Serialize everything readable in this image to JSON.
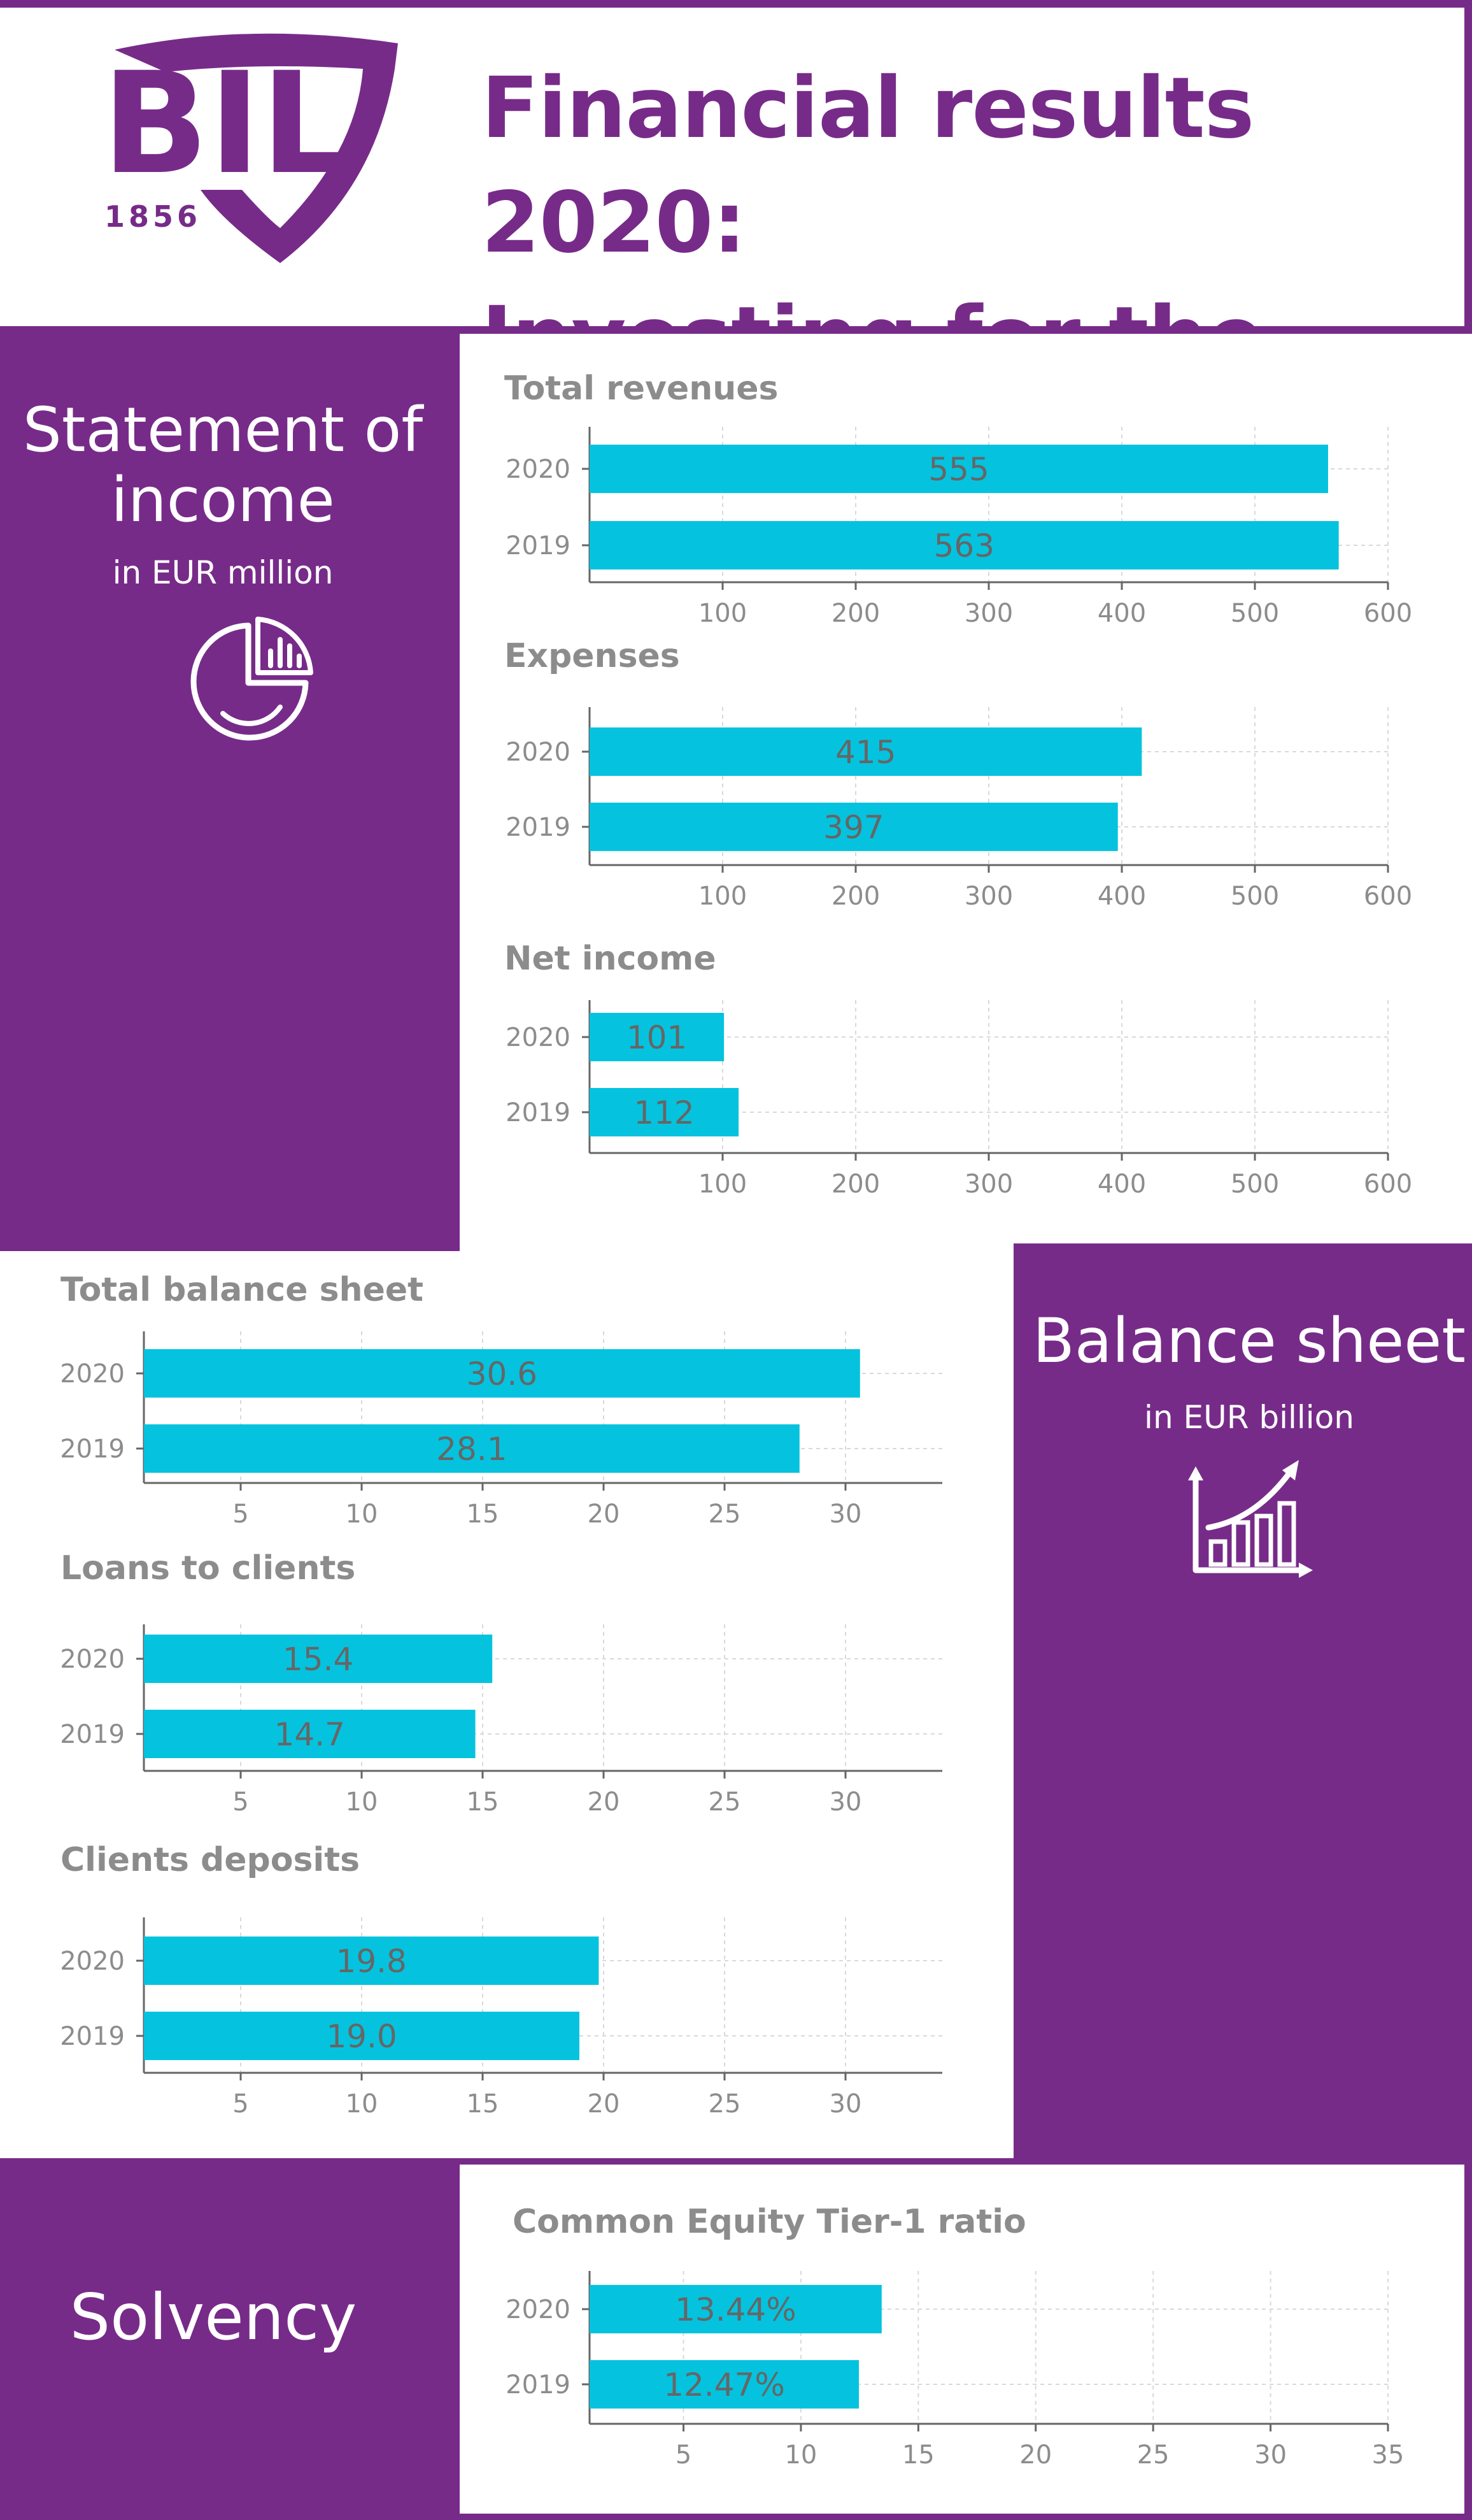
{
  "header": {
    "logo_text": "BIL",
    "logo_year": "1856",
    "title_line1": "Financial results 2020:",
    "title_line2": "Investing for the Future"
  },
  "sections": {
    "income": {
      "title_line1": "Statement of",
      "title_line2": "income",
      "subtitle": "in EUR million",
      "icon": "pie-chart-icon"
    },
    "balance": {
      "title": "Balance sheet",
      "subtitle": "in EUR billion",
      "icon": "growth-chart-icon"
    },
    "solvency": {
      "title": "Solvency"
    }
  },
  "colors": {
    "purple": "#772b89",
    "bar": "#05c3de",
    "value_label": "#666666",
    "chart_title": "#8c8c8c"
  },
  "chart_data": [
    {
      "type": "bar",
      "orientation": "horizontal",
      "title": "Total revenues",
      "categories": [
        "2020",
        "2019"
      ],
      "values": [
        555,
        563
      ],
      "labels": [
        "555",
        "563"
      ],
      "xlim": [
        0,
        600
      ],
      "ticks": [
        100,
        200,
        300,
        400,
        500,
        600
      ],
      "grid": true
    },
    {
      "type": "bar",
      "orientation": "horizontal",
      "title": "Expenses",
      "categories": [
        "2020",
        "2019"
      ],
      "values": [
        415,
        397
      ],
      "labels": [
        "415",
        "397"
      ],
      "xlim": [
        0,
        600
      ],
      "ticks": [
        100,
        200,
        300,
        400,
        500,
        600
      ],
      "grid": true
    },
    {
      "type": "bar",
      "orientation": "horizontal",
      "title": "Net income",
      "categories": [
        "2020",
        "2019"
      ],
      "values": [
        101,
        112
      ],
      "labels": [
        "101",
        "112"
      ],
      "xlim": [
        0,
        600
      ],
      "ticks": [
        100,
        200,
        300,
        400,
        500,
        600
      ],
      "grid": true
    },
    {
      "type": "bar",
      "orientation": "horizontal",
      "title": "Total balance sheet",
      "categories": [
        "2020",
        "2019"
      ],
      "values": [
        30.6,
        28.1
      ],
      "labels": [
        "30.6",
        "28.1"
      ],
      "xlim": [
        1,
        34
      ],
      "ticks": [
        5,
        10,
        15,
        20,
        25,
        30
      ],
      "grid": true
    },
    {
      "type": "bar",
      "orientation": "horizontal",
      "title": "Loans to clients",
      "categories": [
        "2020",
        "2019"
      ],
      "values": [
        15.4,
        14.7
      ],
      "labels": [
        "15.4",
        "14.7"
      ],
      "xlim": [
        1,
        34
      ],
      "ticks": [
        5,
        10,
        15,
        20,
        25,
        30
      ],
      "grid": true
    },
    {
      "type": "bar",
      "orientation": "horizontal",
      "title": "Clients deposits",
      "categories": [
        "2020",
        "2019"
      ],
      "values": [
        19.8,
        19.0
      ],
      "labels": [
        "19.8",
        "19.0"
      ],
      "xlim": [
        1,
        34
      ],
      "ticks": [
        5,
        10,
        15,
        20,
        25,
        30
      ],
      "grid": true
    },
    {
      "type": "bar",
      "orientation": "horizontal",
      "title": "Common Equity Tier-1 ratio",
      "categories": [
        "2020",
        "2019"
      ],
      "values": [
        13.44,
        12.47
      ],
      "labels": [
        "13.44%",
        "12.47%"
      ],
      "xlim": [
        1,
        35
      ],
      "ticks": [
        5,
        10,
        15,
        20,
        25,
        30,
        35
      ],
      "grid": true
    }
  ]
}
